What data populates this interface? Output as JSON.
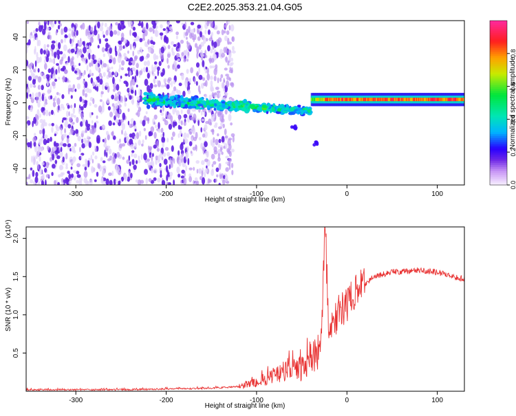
{
  "page_title": "C2E2.2025.353.21.04.G05",
  "colors": {
    "snr_line": "#e83030",
    "axis": "#000000",
    "spec_dense": "#6020e0",
    "spec_light": "#b890f0",
    "spec_faint": "#e2d4fa"
  },
  "colorbar": {
    "label": "Normalized spectral amplitude",
    "ticks": [
      "0.0",
      "0.2",
      "0.4",
      "0.6",
      "0.8"
    ],
    "tick_values": [
      0.0,
      0.2,
      0.4,
      0.6,
      0.8
    ],
    "range": [
      0,
      1
    ]
  },
  "chart_data": [
    {
      "type": "heatmap",
      "xlabel": "Height of straight line (km)",
      "ylabel": "Frequency (Hz)",
      "xlim": [
        -355,
        130
      ],
      "ylim": [
        -50,
        50
      ],
      "xticks": [
        -300,
        -200,
        -100,
        0,
        100
      ],
      "xtick_labels": [
        "-300",
        "-200",
        "-100",
        "0",
        "100"
      ],
      "yticks": [
        -40,
        -20,
        0,
        20,
        40
      ],
      "ytick_labels": [
        "-40",
        "-20",
        "0",
        "20",
        "40"
      ],
      "features": [
        {
          "kind": "noise",
          "x_range": [
            -355,
            -140
          ],
          "y_range": [
            -50,
            50
          ],
          "amplitude": 0.1
        },
        {
          "kind": "band",
          "x_range": [
            -225,
            -40
          ],
          "center_start": 2,
          "center_end": -5,
          "amplitude_peak": 0.4
        },
        {
          "kind": "line",
          "x_range": [
            -40,
            130
          ],
          "frequency": 2,
          "amplitude_peak": 0.95
        },
        {
          "kind": "blob",
          "x": -57,
          "y": -15,
          "amplitude": 0.2
        },
        {
          "kind": "blob",
          "x": -35,
          "y": -25,
          "amplitude": 0.2
        }
      ]
    },
    {
      "type": "line",
      "xlabel": "Height of straight line (km)",
      "ylabel": "SNR (10 * v/v)",
      "scale_label": "(x10⁴)",
      "xlim": [
        -355,
        130
      ],
      "ylim": [
        0,
        2.15
      ],
      "xticks": [
        -300,
        -200,
        -100,
        0,
        100
      ],
      "xtick_labels": [
        "-300",
        "-200",
        "-100",
        "0",
        "100"
      ],
      "yticks": [
        0.5,
        1.0,
        1.5,
        2.0
      ],
      "ytick_labels": [
        "0.5",
        "1.0",
        "1.5",
        "2.0"
      ],
      "series": [
        {
          "x": [
            -355,
            -300,
            -250,
            -200,
            -150,
            -120,
            -100,
            -80,
            -60,
            -45,
            -35,
            -28,
            -24,
            -20,
            -10,
            0,
            10,
            20,
            30,
            50,
            80,
            100,
            115,
            130
          ],
          "y": [
            0.02,
            0.02,
            0.02,
            0.03,
            0.04,
            0.06,
            0.12,
            0.2,
            0.28,
            0.3,
            0.5,
            0.8,
            2.2,
            0.75,
            1.0,
            1.15,
            1.3,
            1.4,
            1.5,
            1.56,
            1.58,
            1.56,
            1.5,
            1.47
          ]
        }
      ]
    }
  ]
}
